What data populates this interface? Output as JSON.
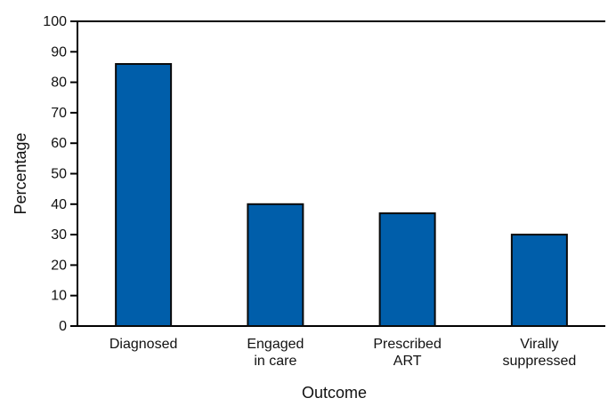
{
  "chart_data": {
    "type": "bar",
    "title": "",
    "xlabel": "Outcome",
    "ylabel": "Percentage",
    "categories": [
      [
        "Diagnosed"
      ],
      [
        "Engaged",
        "in care"
      ],
      [
        "Prescribed",
        "ART"
      ],
      [
        "Virally",
        "suppressed"
      ]
    ],
    "values": [
      86,
      40,
      37,
      30
    ],
    "ylim": [
      0,
      100
    ],
    "yticks": [
      0,
      10,
      20,
      30,
      40,
      50,
      60,
      70,
      80,
      90,
      100
    ],
    "grid": false,
    "bar_color": "#005EAA",
    "bar_stroke": "#0A0A0A",
    "axis_color": "#000000"
  }
}
